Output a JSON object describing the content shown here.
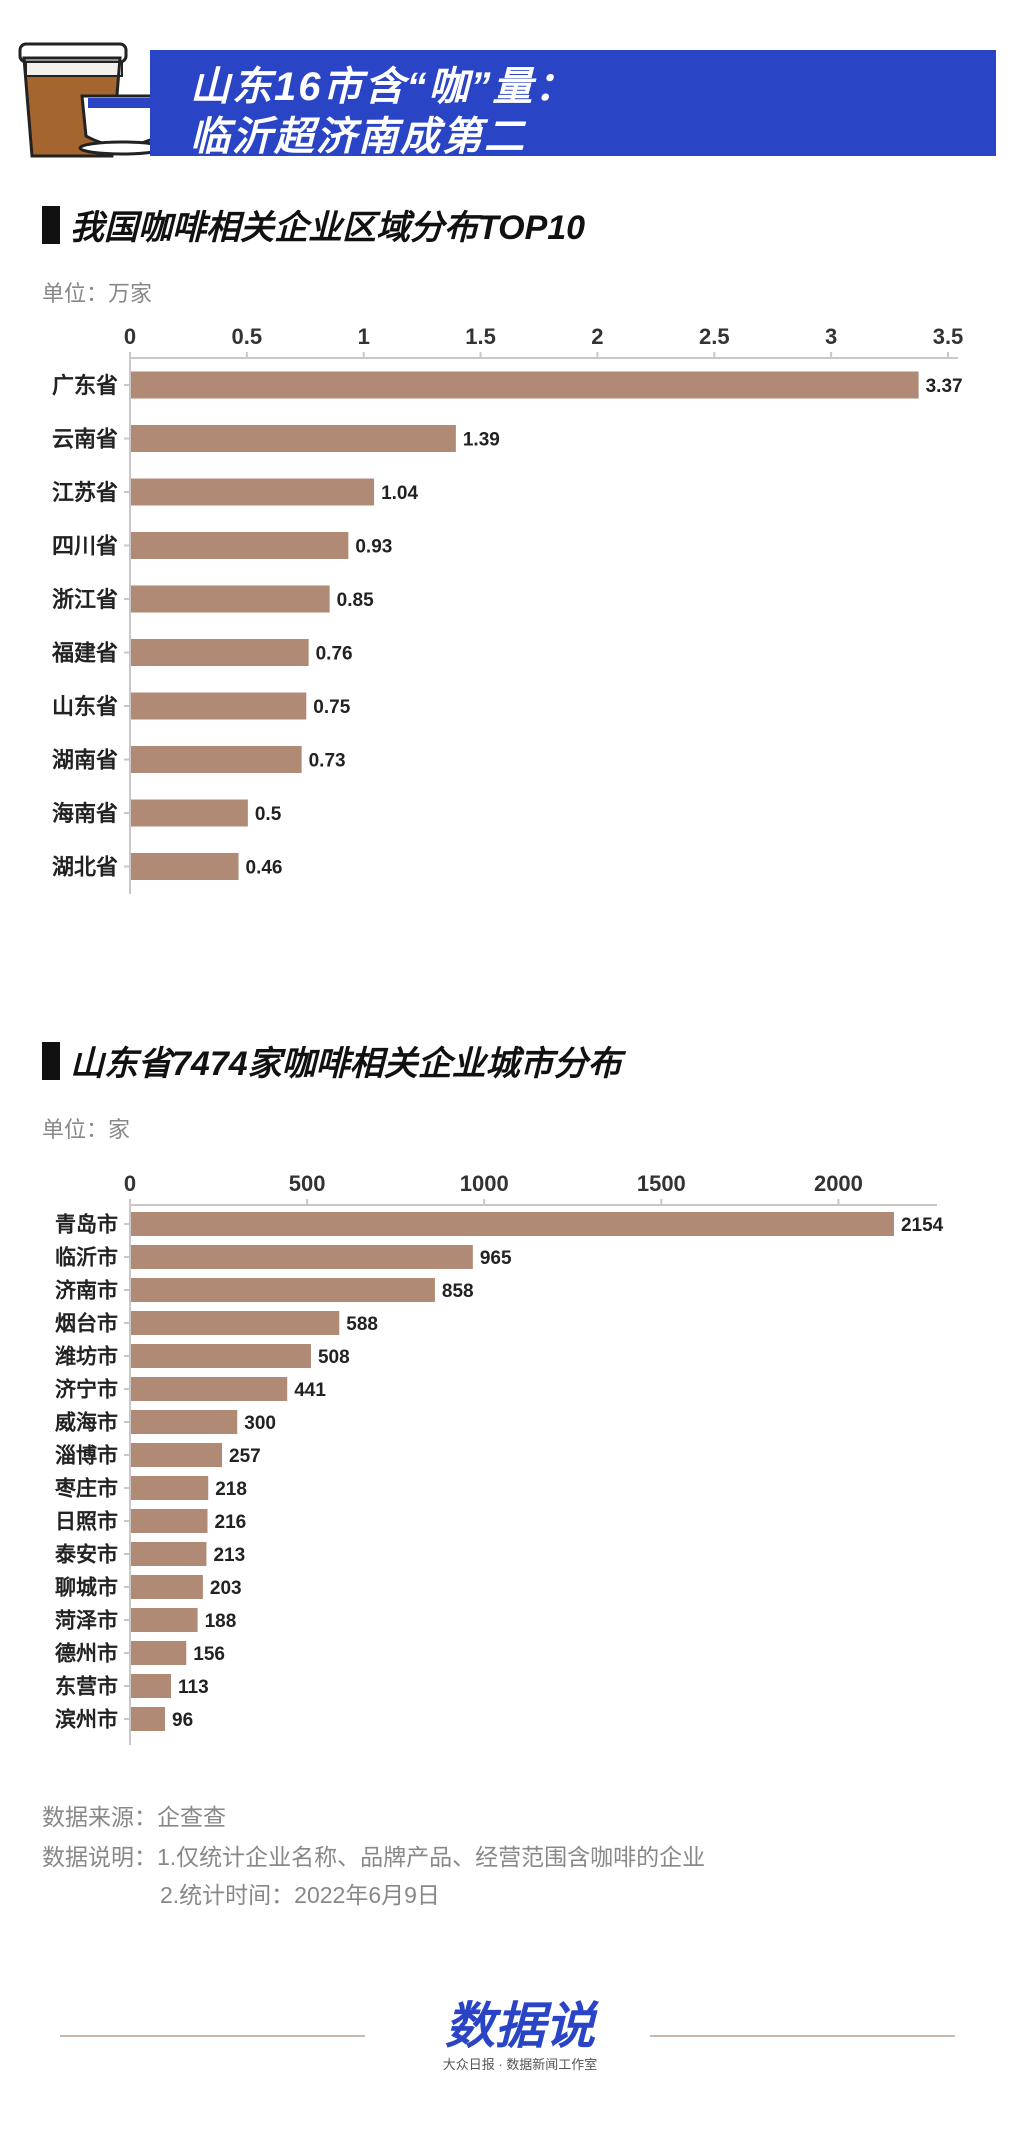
{
  "header": {
    "title_line1": "山东16市含“咖”量：",
    "title_line2": "临沂超济南成第二"
  },
  "section1": {
    "title": "我国咖啡相关企业区域分布TOP10",
    "unit": "单位：万家"
  },
  "section2": {
    "title": "山东省7474家咖啡相关企业城市分布",
    "unit": "单位：家"
  },
  "footer": {
    "source": "数据来源：企查查",
    "note_line1": "数据说明：1.仅统计企业名称、品牌产品、经营范围含咖啡的企业",
    "note_line2": "2.统计时间：2022年6月9日",
    "logo_main": "数据说",
    "logo_sub": "大众日报 · 数据新闻工作室"
  },
  "colors": {
    "bar": "#b08a75",
    "banner": "#2a44c6",
    "axis": "#c8c8c8"
  },
  "chart_data": [
    {
      "type": "bar",
      "orientation": "horizontal",
      "title": "我国咖啡相关企业区域分布TOP10",
      "unit": "万家",
      "categories": [
        "广东省",
        "云南省",
        "江苏省",
        "四川省",
        "浙江省",
        "福建省",
        "山东省",
        "湖南省",
        "海南省",
        "湖北省"
      ],
      "values": [
        3.37,
        1.39,
        1.04,
        0.93,
        0.85,
        0.76,
        0.75,
        0.73,
        0.5,
        0.46
      ],
      "value_labels": [
        "3.37",
        "1.39",
        "1.04",
        "0.93",
        "0.85",
        "0.76",
        "0.75",
        "0.73",
        "0.5",
        "0.46"
      ],
      "xlim": [
        0,
        3.5
      ],
      "ticks": [
        0,
        0.5,
        1,
        1.5,
        2,
        2.5,
        3,
        3.5
      ],
      "tick_labels": [
        "0",
        "0.5",
        "1",
        "1.5",
        "2",
        "2.5",
        "3",
        "3.5"
      ],
      "axis_position": "top",
      "grid": false,
      "legend": "none"
    },
    {
      "type": "bar",
      "orientation": "horizontal",
      "title": "山东省7474家咖啡相关企业城市分布",
      "unit": "家",
      "categories": [
        "青岛市",
        "临沂市",
        "济南市",
        "烟台市",
        "潍坊市",
        "济宁市",
        "威海市",
        "淄博市",
        "枣庄市",
        "日照市",
        "泰安市",
        "聊城市",
        "菏泽市",
        "德州市",
        "东营市",
        "滨州市"
      ],
      "values": [
        2154,
        965,
        858,
        588,
        508,
        441,
        300,
        257,
        218,
        216,
        213,
        203,
        188,
        156,
        113,
        96
      ],
      "value_labels": [
        "2154",
        "965",
        "858",
        "588",
        "508",
        "441",
        "300",
        "257",
        "218",
        "216",
        "213",
        "203",
        "188",
        "156",
        "113",
        "96"
      ],
      "xlim": [
        0,
        2250
      ],
      "ticks": [
        0,
        500,
        1000,
        1500,
        2000
      ],
      "tick_labels": [
        "0",
        "500",
        "1000",
        "1500",
        "2000"
      ],
      "axis_position": "top",
      "grid": false,
      "legend": "none"
    }
  ]
}
